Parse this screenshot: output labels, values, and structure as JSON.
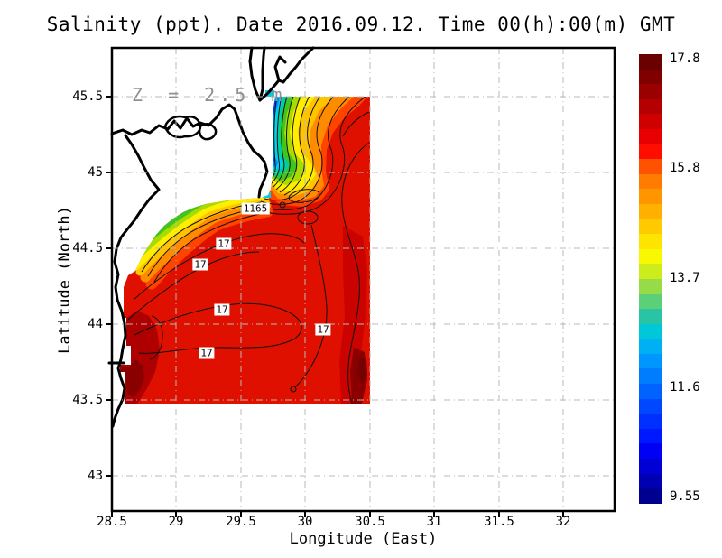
{
  "title": "Salinity (ppt). Date 2016.09.12. Time 00(h):00(m) GMT",
  "annotation": {
    "depth_label": "Z = 2.5 m"
  },
  "axes": {
    "x": {
      "label": "Longitude (East)",
      "tick_labels": [
        "28.5",
        "29",
        "29.5",
        "30",
        "30.5",
        "31",
        "31.5",
        "32"
      ]
    },
    "y": {
      "label": "Latitude (North)",
      "tick_labels": [
        "45.5",
        "45",
        "44.5",
        "44",
        "43.5",
        "43"
      ]
    }
  },
  "colorbar": {
    "tick_labels": [
      "17.8",
      "15.8",
      "13.7",
      "11.6",
      "9.55"
    ],
    "min": 9.55,
    "max": 17.8,
    "colors_top_to_bottom": [
      "#6b0000",
      "#800000",
      "#9a0000",
      "#b40000",
      "#ce0000",
      "#e80000",
      "#ff0e00",
      "#ff5200",
      "#ff7c00",
      "#ff9600",
      "#ffb000",
      "#ffca00",
      "#ffe400",
      "#f8f800",
      "#ccec1c",
      "#96dc48",
      "#5cd078",
      "#28c4a4",
      "#00c8d8",
      "#00b0f4",
      "#0096ff",
      "#007cff",
      "#0062ff",
      "#0048ff",
      "#0030ff",
      "#0018ff",
      "#0000f4",
      "#0000d4",
      "#0000b2",
      "#000090"
    ]
  },
  "contour_labels": [
    {
      "text": "1165"
    },
    {
      "text": "17"
    },
    {
      "text": "17"
    },
    {
      "text": "17"
    },
    {
      "text": "17"
    },
    {
      "text": "17"
    }
  ],
  "palette": {
    "base_red": "#e01000",
    "red_shade": "#cb0300",
    "dark_red": "#ae0000",
    "maroon": "#8a0000",
    "deep_maroon": "#740000",
    "orange_red": "#ff4400",
    "orange": "#ff8c00",
    "amber": "#ffc300",
    "yellow": "#ffee00",
    "chartreuse": "#a8dc00",
    "green": "#3fc61e",
    "teal": "#00cf9a",
    "cyan": "#00cfe8",
    "azure": "#008cff",
    "blue": "#0038ff",
    "navy": "#000096",
    "contour": "#101010",
    "coast": "#000000",
    "grid": "#b8b8b8",
    "frame": "#000000"
  },
  "chart_data": {
    "type": "heatmap",
    "variable": "Salinity",
    "units": "ppt",
    "depth_label": "Z = 2.5 m",
    "date": "2016.09.12",
    "time": "00(h):00(m) GMT",
    "title": "Salinity (ppt). Date 2016.09.12. Time 00(h):00(m) GMT",
    "xlabel": "Longitude (East)",
    "ylabel": "Latitude (North)",
    "x_ticks": [
      28.5,
      29,
      29.5,
      30,
      30.5,
      31,
      31.5,
      32
    ],
    "y_ticks": [
      45.5,
      45,
      44.5,
      44,
      43.5,
      43
    ],
    "xlim": [
      28.5,
      32.4
    ],
    "ylim": [
      42.8,
      45.8
    ],
    "grid": true,
    "legend_position": "right-colorbar",
    "data_extent": {
      "lon_min": 28.6,
      "lon_max": 30.5,
      "lat_min": 43.5,
      "lat_max": 45.5
    },
    "colorbar_range": {
      "min": 9.55,
      "max": 17.8,
      "ticks": [
        17.8,
        15.8,
        13.7,
        11.6,
        9.55
      ]
    },
    "contour_interval_ppt": 0.5,
    "visible_contour_label_values": [
      17,
      17,
      17,
      17,
      17
    ],
    "overlapping_label_cluster": "1165",
    "field_summary": {
      "background_ppt": "16.5-17.5 (red) over most of the shelf",
      "river_plume": "low-salinity plume approx 9.6-14 ppt (navy/blue/cyan/green/yellow bands) hugging the coast near 29.75E from 44.9N to 45.5N, fanning northeast at the top",
      "coastal_band": "fresher band approx 14-16.5 ppt (green-yellow-orange) along the coast southwest of the plume toward 28.7E, 44.3N",
      "salinity_maxima": "darkest red approx 17.8 ppt at the coastal cells near 28.6E/43.7N and along 30.4E south of 44N"
    }
  }
}
